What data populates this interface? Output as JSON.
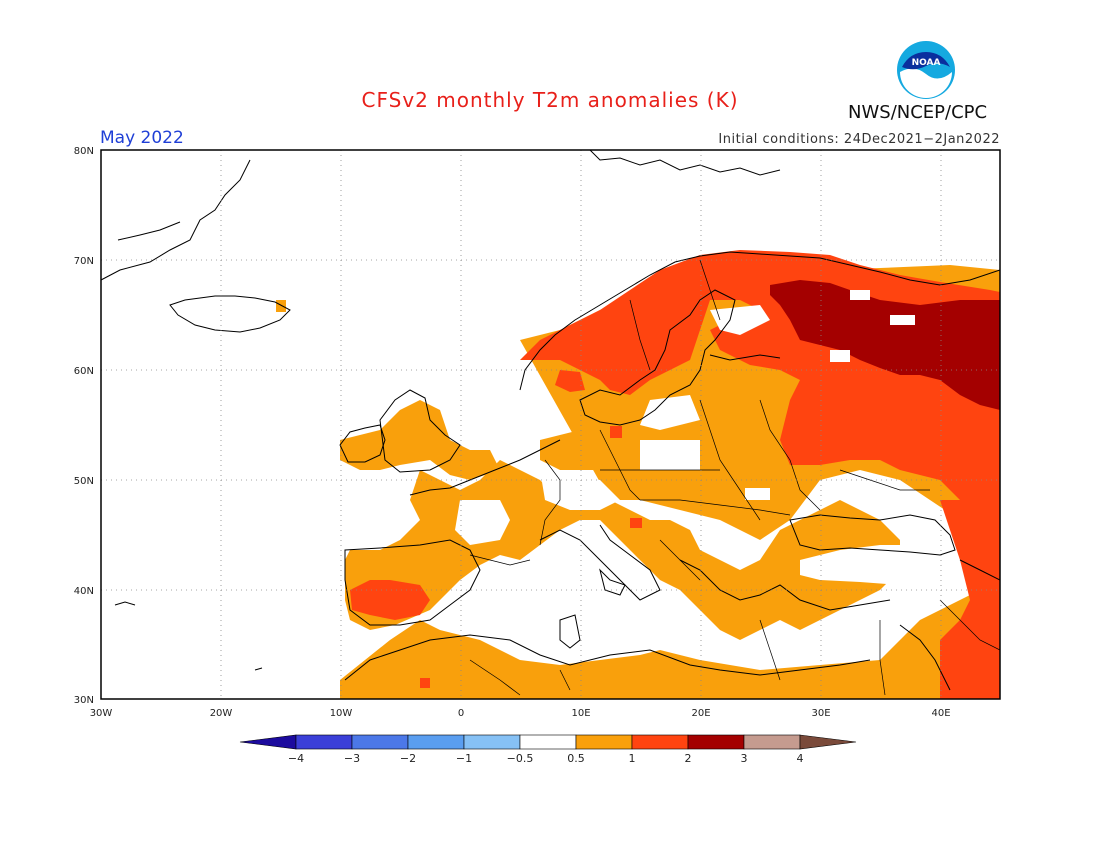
{
  "header": {
    "title": "CFSv2 monthly T2m anomalies (K)",
    "month": "May 2022",
    "initial_conditions": "Initial conditions: 24Dec2021−2Jan2022",
    "agency": "NWS/NCEP/CPC",
    "logo_text": "NOAA"
  },
  "axes": {
    "lon_ticks": [
      "30W",
      "20W",
      "10W",
      "0",
      "10E",
      "20E",
      "30E",
      "40E"
    ],
    "lat_ticks": [
      "80N",
      "70N",
      "60N",
      "50N",
      "40N",
      "30N"
    ]
  },
  "colorbar": {
    "labels": [
      "−4",
      "−3",
      "−2",
      "−1",
      "−0.5",
      "0.5",
      "1",
      "2",
      "3",
      "4"
    ],
    "colors": [
      "#1c0b9e",
      "#3b3fd8",
      "#4c78e8",
      "#5a9ef0",
      "#86c1f5",
      "#ffffff",
      "#f9a00c",
      "#ff4410",
      "#a40000",
      "#c59b8f",
      "#7a4a3a"
    ]
  }
}
